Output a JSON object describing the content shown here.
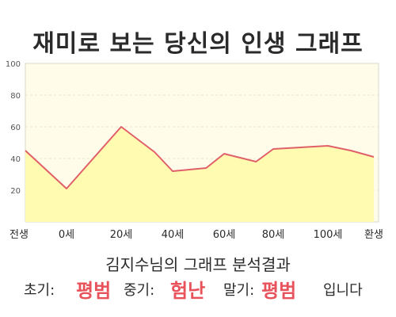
{
  "title": "재미로 보는 당신의 인생 그래프",
  "subtitle": "김지수님의 그래프 분석결과",
  "result": {
    "early_label": "초기:",
    "early_value": "평범",
    "middle_label": "중기:",
    "middle_value": "험난",
    "late_label": "말기:",
    "late_value": "평범",
    "suffix": "입니다"
  },
  "colors": {
    "line": "#e0606a",
    "fill": "#fffbb0",
    "plot_bg": "#fffdea",
    "grid": "#e6e6cf"
  },
  "chart_data": {
    "type": "area",
    "title": "재미로 보는 당신의 인생 그래프",
    "x_tick_labels": [
      "전생",
      "0세",
      "20세",
      "40세",
      "60세",
      "80세",
      "100세",
      "환생"
    ],
    "x": [
      -25,
      0,
      20,
      33,
      40,
      53,
      60,
      73,
      80,
      90,
      100,
      110,
      120
    ],
    "values": [
      45,
      21,
      60,
      44,
      32,
      34,
      43,
      38,
      46,
      47,
      48,
      45,
      41
    ],
    "ylim": [
      0,
      100
    ],
    "y_ticks": [
      20,
      40,
      60,
      80,
      100
    ],
    "grid": true,
    "legend": "none"
  }
}
